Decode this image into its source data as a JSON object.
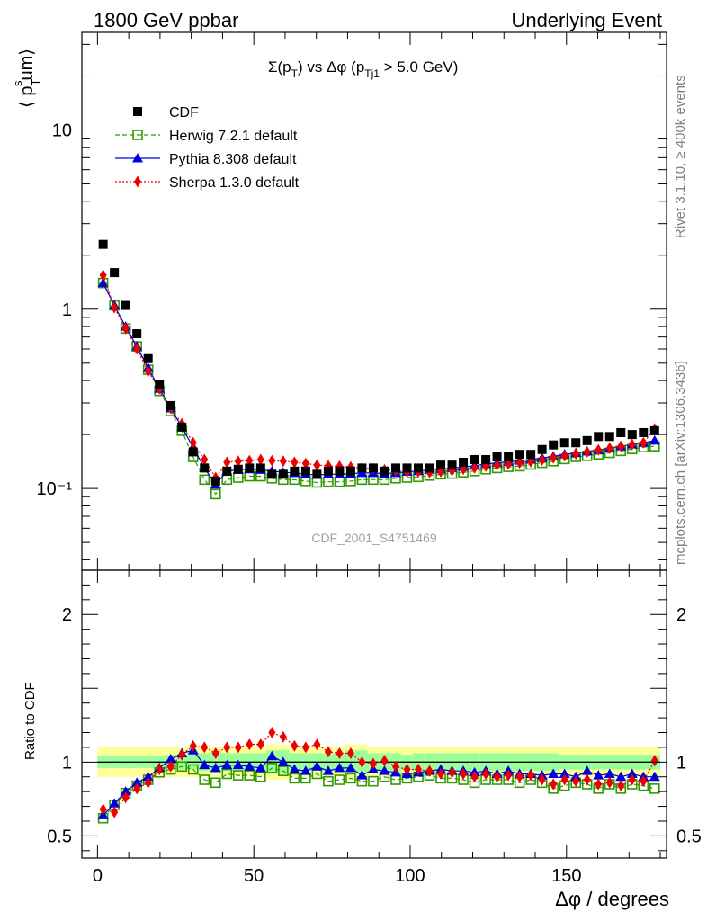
{
  "header": {
    "left": "1800 GeV ppbar",
    "right": "Underlying Event"
  },
  "side_text": {
    "rivet": "Rivet 3.1.10, ≥ 400k events",
    "mcplots": "mcplots.cern.ch [arXiv:1306.3436]"
  },
  "chart_data": {
    "type": "scatter",
    "title": "Σ(pT) vs Δφ (pTj1 > 5.0 GeV)",
    "title_parts": {
      "a": "Σ(p",
      "sub1": "T",
      "b": ") vs Δφ (p",
      "sub2": "Tj1",
      "c": " > 5.0 GeV)"
    },
    "watermark": "CDF_2001_S4751469",
    "ylabel": "⟨ pTsum⟩",
    "ylabel_parts": {
      "a": "⟨ p",
      "sub": "T",
      "sup": "s",
      "b": "um⟩"
    },
    "xlabel": "Δφ / degrees",
    "ratio_ylabel": "Ratio to CDF",
    "xlim": [
      -5,
      182
    ],
    "ylim_main": [
      0.035,
      35
    ],
    "yscale_main": "log",
    "ylim_ratio": [
      0.35,
      2.3
    ],
    "main_yticks": [
      {
        "v": 10,
        "label": "10"
      },
      {
        "v": 1,
        "label": "1"
      },
      {
        "v": 0.1,
        "label": "10⁻¹"
      }
    ],
    "ratio_yticks": [
      {
        "v": 2,
        "label": "2"
      },
      {
        "v": 1,
        "label": "1"
      },
      {
        "v": 0.5,
        "label": "0.5"
      }
    ],
    "xticks": [
      0,
      50,
      100,
      150
    ],
    "x": [
      1.8,
      5.4,
      9.0,
      12.6,
      16.2,
      19.8,
      23.4,
      27.0,
      30.6,
      34.2,
      37.8,
      41.4,
      45.0,
      48.6,
      52.2,
      55.8,
      59.4,
      63.0,
      66.6,
      70.2,
      73.8,
      77.4,
      81.0,
      84.6,
      88.2,
      91.8,
      95.4,
      99.0,
      102.6,
      106.2,
      109.8,
      113.4,
      117.0,
      120.6,
      124.2,
      127.8,
      131.4,
      135.0,
      138.6,
      142.2,
      145.8,
      149.4,
      153.0,
      156.6,
      160.2,
      163.8,
      167.4,
      171.0,
      174.6,
      178.2
    ],
    "series": [
      {
        "name": "CDF",
        "marker": "square-filled",
        "color": "#000000",
        "values": [
          2.3,
          1.6,
          1.05,
          0.73,
          0.53,
          0.38,
          0.29,
          0.22,
          0.16,
          0.13,
          0.11,
          0.125,
          0.128,
          0.13,
          0.13,
          0.12,
          0.12,
          0.125,
          0.125,
          0.12,
          0.125,
          0.125,
          0.125,
          0.13,
          0.13,
          0.125,
          0.13,
          0.13,
          0.13,
          0.13,
          0.135,
          0.135,
          0.14,
          0.145,
          0.145,
          0.15,
          0.15,
          0.155,
          0.155,
          0.165,
          0.175,
          0.18,
          0.18,
          0.185,
          0.195,
          0.195,
          0.205,
          0.2,
          0.205,
          0.21
        ]
      },
      {
        "name": "Herwig 7.2.1 default",
        "marker": "square-open",
        "color": "#339900",
        "line": "dashed",
        "values": [
          1.4,
          1.05,
          0.78,
          0.62,
          0.46,
          0.35,
          0.27,
          0.21,
          0.15,
          0.112,
          0.093,
          0.112,
          0.115,
          0.117,
          0.117,
          0.114,
          0.112,
          0.112,
          0.11,
          0.108,
          0.109,
          0.109,
          0.11,
          0.112,
          0.112,
          0.112,
          0.114,
          0.115,
          0.116,
          0.118,
          0.12,
          0.121,
          0.123,
          0.125,
          0.128,
          0.13,
          0.132,
          0.133,
          0.136,
          0.139,
          0.142,
          0.146,
          0.15,
          0.152,
          0.155,
          0.158,
          0.162,
          0.166,
          0.17,
          0.172
        ]
      },
      {
        "name": "Pythia 8.308 default",
        "marker": "triangle-filled",
        "color": "#0000dd",
        "line": "solid",
        "values": [
          1.4,
          1.05,
          0.8,
          0.62,
          0.47,
          0.36,
          0.28,
          0.22,
          0.17,
          0.13,
          0.105,
          0.125,
          0.127,
          0.128,
          0.127,
          0.125,
          0.123,
          0.122,
          0.12,
          0.119,
          0.12,
          0.12,
          0.121,
          0.122,
          0.122,
          0.121,
          0.122,
          0.124,
          0.125,
          0.127,
          0.128,
          0.13,
          0.132,
          0.134,
          0.137,
          0.139,
          0.141,
          0.143,
          0.145,
          0.148,
          0.151,
          0.155,
          0.158,
          0.161,
          0.164,
          0.168,
          0.172,
          0.176,
          0.18,
          0.185
        ]
      },
      {
        "name": "Sherpa 1.3.0 default",
        "marker": "diamond-filled",
        "color": "#ee0000",
        "line": "dotted",
        "values": [
          1.55,
          1.02,
          0.78,
          0.6,
          0.45,
          0.36,
          0.28,
          0.23,
          0.18,
          0.145,
          0.115,
          0.14,
          0.142,
          0.143,
          0.145,
          0.143,
          0.142,
          0.14,
          0.138,
          0.135,
          0.134,
          0.133,
          0.132,
          0.13,
          0.129,
          0.127,
          0.126,
          0.124,
          0.124,
          0.123,
          0.124,
          0.126,
          0.128,
          0.13,
          0.133,
          0.135,
          0.137,
          0.139,
          0.141,
          0.144,
          0.148,
          0.152,
          0.156,
          0.16,
          0.164,
          0.168,
          0.172,
          0.176,
          0.18,
          0.215
        ]
      }
    ],
    "ratio": {
      "band_outer": [
        0.1,
        0.1,
        0.1,
        0.1,
        0.1,
        0.1,
        0.1,
        0.1,
        0.1,
        0.1,
        0.1,
        0.1,
        0.1,
        0.1,
        0.1,
        0.12,
        0.12,
        0.1,
        0.1,
        0.1,
        0.1,
        0.1,
        0.12,
        0.12,
        0.1,
        0.1,
        0.1,
        0.1,
        0.1,
        0.1,
        0.1,
        0.1,
        0.1,
        0.1,
        0.1,
        0.1,
        0.1,
        0.1,
        0.1,
        0.1,
        0.1,
        0.1,
        0.1,
        0.1,
        0.1,
        0.1,
        0.1,
        0.1,
        0.1,
        0.1
      ],
      "band_inner": [
        0.04,
        0.04,
        0.04,
        0.04,
        0.04,
        0.04,
        0.05,
        0.05,
        0.05,
        0.06,
        0.07,
        0.06,
        0.06,
        0.06,
        0.06,
        0.08,
        0.08,
        0.06,
        0.06,
        0.06,
        0.06,
        0.06,
        0.08,
        0.08,
        0.06,
        0.06,
        0.06,
        0.05,
        0.06,
        0.06,
        0.06,
        0.06,
        0.06,
        0.06,
        0.06,
        0.06,
        0.06,
        0.06,
        0.06,
        0.06,
        0.06,
        0.05,
        0.05,
        0.05,
        0.05,
        0.05,
        0.05,
        0.05,
        0.05,
        0.05
      ],
      "series": [
        {
          "name": "Herwig 7.2.1 default",
          "values": [
            0.62,
            0.71,
            0.79,
            0.84,
            0.88,
            0.93,
            0.95,
            0.97,
            0.95,
            0.88,
            0.86,
            0.92,
            0.91,
            0.91,
            0.9,
            0.96,
            0.94,
            0.89,
            0.89,
            0.92,
            0.87,
            0.88,
            0.89,
            0.87,
            0.87,
            0.9,
            0.88,
            0.89,
            0.9,
            0.91,
            0.89,
            0.89,
            0.88,
            0.86,
            0.88,
            0.88,
            0.88,
            0.86,
            0.88,
            0.86,
            0.82,
            0.84,
            0.86,
            0.85,
            0.82,
            0.85,
            0.82,
            0.85,
            0.84,
            0.82
          ]
        },
        {
          "name": "Pythia 8.308 default",
          "values": [
            0.64,
            0.72,
            0.8,
            0.86,
            0.9,
            0.96,
            1.02,
            1.06,
            1.08,
            0.98,
            0.96,
            0.98,
            0.98,
            0.97,
            0.96,
            1.04,
            1.0,
            0.95,
            0.94,
            0.97,
            0.94,
            0.96,
            0.96,
            0.91,
            0.95,
            0.94,
            0.93,
            0.92,
            0.93,
            0.94,
            0.95,
            0.94,
            0.94,
            0.93,
            0.94,
            0.92,
            0.94,
            0.92,
            0.92,
            0.91,
            0.92,
            0.92,
            0.9,
            0.94,
            0.91,
            0.92,
            0.9,
            0.92,
            0.9,
            0.9
          ]
        },
        {
          "name": "Sherpa 1.3.0 default",
          "values": [
            0.68,
            0.66,
            0.76,
            0.82,
            0.86,
            0.95,
            0.97,
            1.05,
            1.11,
            1.1,
            1.06,
            1.1,
            1.1,
            1.12,
            1.12,
            1.2,
            1.17,
            1.11,
            1.1,
            1.12,
            1.07,
            1.06,
            1.06,
            1.0,
            0.99,
            1.01,
            0.97,
            0.95,
            0.95,
            0.94,
            0.92,
            0.93,
            0.92,
            0.9,
            0.92,
            0.9,
            0.91,
            0.9,
            0.91,
            0.88,
            0.85,
            0.88,
            0.87,
            0.88,
            0.85,
            0.86,
            0.84,
            0.88,
            0.87,
            1.01
          ]
        }
      ]
    },
    "legend_position": "top-left"
  }
}
